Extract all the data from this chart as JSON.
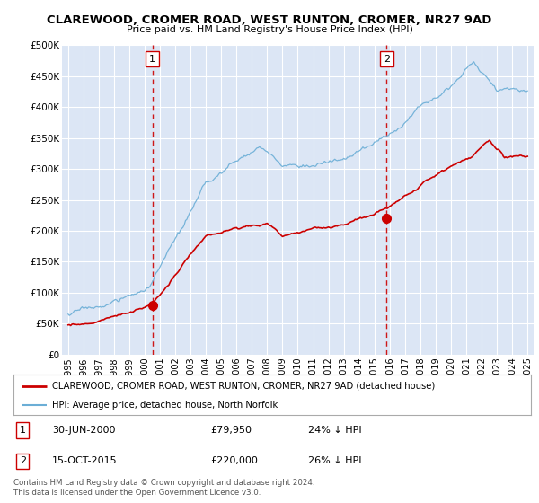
{
  "title": "CLAREWOOD, CROMER ROAD, WEST RUNTON, CROMER, NR27 9AD",
  "subtitle": "Price paid vs. HM Land Registry's House Price Index (HPI)",
  "bg_color": "#dce6f5",
  "sale1_date": 2000.5,
  "sale1_price": 79950,
  "sale2_date": 2015.79,
  "sale2_price": 220000,
  "legend_line1": "CLAREWOOD, CROMER ROAD, WEST RUNTON, CROMER, NR27 9AD (detached house)",
  "legend_line2": "HPI: Average price, detached house, North Norfolk",
  "note1_label": "1",
  "note1_date": "30-JUN-2000",
  "note1_price": "£79,950",
  "note1_hpi": "24% ↓ HPI",
  "note2_label": "2",
  "note2_date": "15-OCT-2015",
  "note2_price": "£220,000",
  "note2_hpi": "26% ↓ HPI",
  "copyright": "Contains HM Land Registry data © Crown copyright and database right 2024.\nThis data is licensed under the Open Government Licence v3.0.",
  "hpi_color": "#6baed6",
  "price_color": "#cc0000",
  "dashed_color": "#cc0000",
  "ylim": [
    0,
    500000
  ],
  "yticks": [
    0,
    50000,
    100000,
    150000,
    200000,
    250000,
    300000,
    350000,
    400000,
    450000,
    500000
  ],
  "xlim_start": 1994.6,
  "xlim_end": 2025.4
}
